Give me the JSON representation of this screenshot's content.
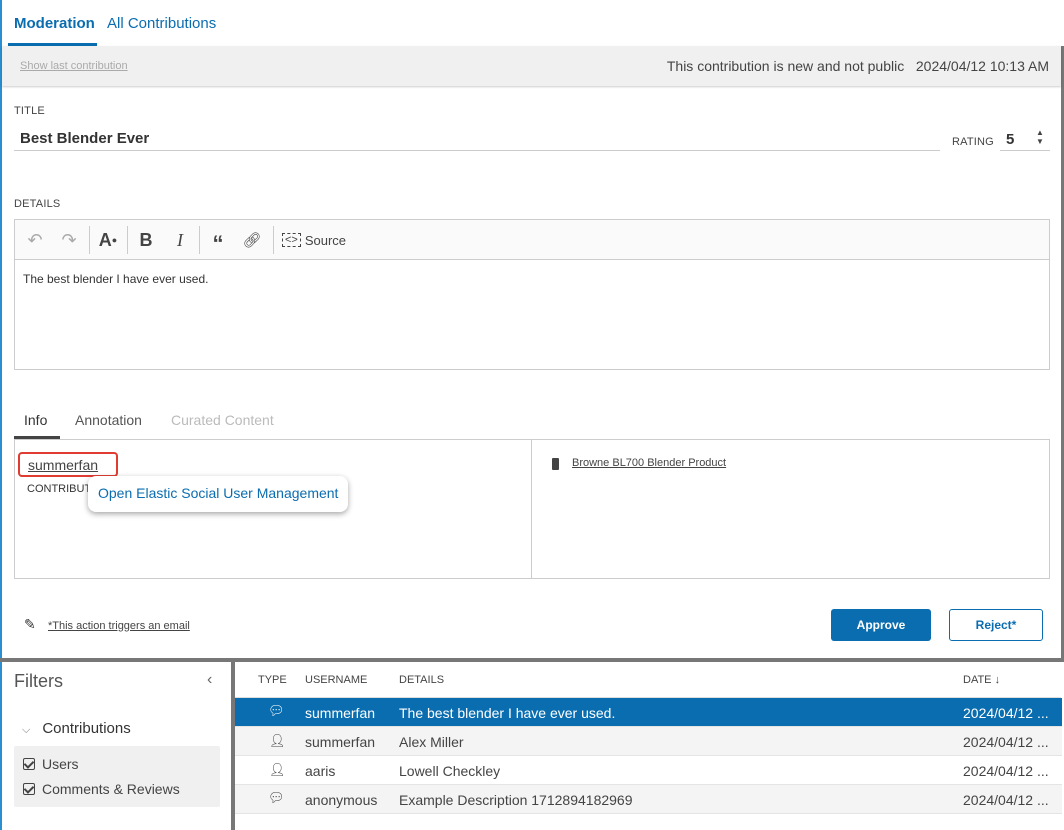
{
  "tabs": {
    "moderation": "Moderation",
    "all": "All Contributions"
  },
  "status": {
    "show_last": "Show last contribution",
    "message": "This contribution is new and not public",
    "date": "2024/04/12 10:13 AM"
  },
  "form": {
    "title_label": "TITLE",
    "title_value": "Best Blender Ever",
    "rating_label": "RATING",
    "rating_value": "5",
    "details_label": "DETAILS",
    "details_text": "The best blender I have ever used.",
    "source_label": "Source"
  },
  "info_tabs": {
    "info": "Info",
    "annotation": "Annotation",
    "curated": "Curated Content"
  },
  "info": {
    "username": "summerfan",
    "contributor_label": "CONTRIBUTOR",
    "tooltip": "Open Elastic Social User Management",
    "product": "Browne BL700 Blender Product"
  },
  "actions": {
    "email_note": "*This action triggers an email",
    "approve": "Approve",
    "reject": "Reject*"
  },
  "filters": {
    "title": "Filters",
    "group": "Contributions",
    "items": [
      {
        "label": "Users",
        "checked": true
      },
      {
        "label": "Comments & Reviews",
        "checked": true
      }
    ]
  },
  "table": {
    "headers": {
      "type": "TYPE",
      "username": "USERNAME",
      "details": "DETAILS",
      "date": "DATE"
    },
    "rows": [
      {
        "type": "comment",
        "username": "summerfan",
        "details": "The best blender I have ever used.",
        "date": "2024/04/12 ..."
      },
      {
        "type": "user",
        "username": "summerfan",
        "details": "Alex Miller",
        "date": "2024/04/12 ..."
      },
      {
        "type": "user",
        "username": "aaris",
        "details": "Lowell Checkley",
        "date": "2024/04/12 ..."
      },
      {
        "type": "comment",
        "username": "anonymous",
        "details": "Example Description 1712894182969",
        "date": "2024/04/12 ..."
      }
    ]
  },
  "colors": {
    "accent": "#0a6db0",
    "highlight": "#e03c31"
  }
}
